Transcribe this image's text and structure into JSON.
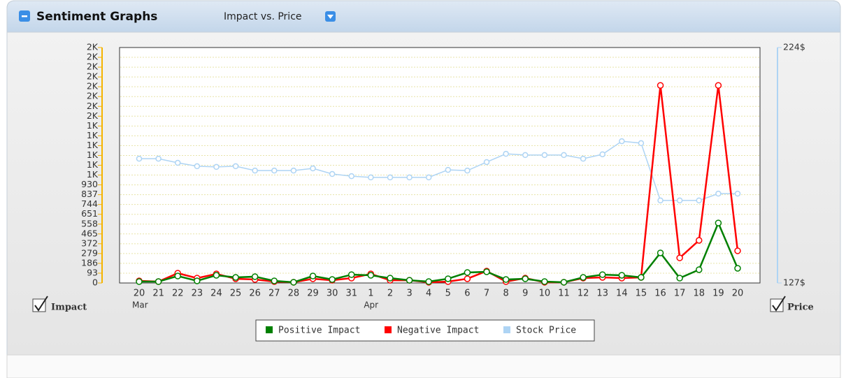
{
  "header": {
    "title": "Sentiment Graphs",
    "view": "Impact vs. Price"
  },
  "toggles": {
    "left": "Impact",
    "right": "Price"
  },
  "chart_data": {
    "type": "line",
    "categories": [
      "20",
      "21",
      "22",
      "23",
      "24",
      "25",
      "26",
      "27",
      "28",
      "29",
      "30",
      "31",
      "1",
      "2",
      "3",
      "4",
      "5",
      "6",
      "7",
      "8",
      "9",
      "10",
      "11",
      "12",
      "13",
      "14",
      "15",
      "16",
      "17",
      "18",
      "19",
      "20"
    ],
    "sub_categories": [
      "Mar",
      null,
      null,
      null,
      null,
      null,
      null,
      null,
      null,
      null,
      null,
      null,
      "Apr",
      null,
      null,
      null,
      null,
      null,
      null,
      null,
      null,
      null,
      null,
      null,
      null,
      null,
      null,
      null,
      null,
      null,
      null,
      null
    ],
    "series": [
      {
        "name": "Stock Price",
        "color": "#aed4f4",
        "axis": "y2",
        "values": [
          178.2,
          178.2,
          176.5,
          175.1,
          174.8,
          175.1,
          173.3,
          173.3,
          173.3,
          174.2,
          171.9,
          171,
          170.5,
          170.5,
          170.5,
          170.5,
          173.6,
          173.3,
          176.8,
          180.2,
          179.7,
          179.7,
          179.7,
          178.2,
          180,
          185.4,
          184.6,
          161,
          161,
          161,
          163.8,
          163.8
        ]
      },
      {
        "name": "Negative Impact",
        "color": "#ff0000",
        "values": [
          20,
          13,
          93,
          46,
          86,
          40,
          33,
          13,
          7,
          40,
          26,
          46,
          86,
          26,
          26,
          7,
          13,
          40,
          113,
          13,
          46,
          7,
          7,
          46,
          53,
          46,
          53,
          1873,
          238,
          404,
          1873,
          305
        ]
      },
      {
        "name": "Positive Impact",
        "color": "#008000",
        "values": [
          13,
          13,
          66,
          20,
          73,
          53,
          60,
          20,
          7,
          66,
          33,
          79,
          73,
          46,
          26,
          13,
          40,
          99,
          106,
          33,
          40,
          13,
          7,
          53,
          79,
          73,
          53,
          285,
          46,
          126,
          569,
          139
        ]
      }
    ],
    "legend_order": [
      "Positive Impact",
      "Negative Impact",
      "Stock Price"
    ],
    "ylim": [
      0,
      2232
    ],
    "yticks": [
      0,
      93,
      186,
      279,
      372,
      465,
      558,
      651,
      744,
      837,
      930,
      {
        "value": 1023,
        "label": "1K"
      },
      {
        "value": 1116,
        "label": "1K"
      },
      {
        "value": 1209,
        "label": "1K"
      },
      {
        "value": 1302,
        "label": "1K"
      },
      {
        "value": 1395,
        "label": "1K"
      },
      {
        "value": 1488,
        "label": "1K"
      },
      {
        "value": 1581,
        "label": "2K"
      },
      {
        "value": 1674,
        "label": "2K"
      },
      {
        "value": 1767,
        "label": "2K"
      },
      {
        "value": 1860,
        "label": "2K"
      },
      {
        "value": 1953,
        "label": "2K"
      },
      {
        "value": 2046,
        "label": "2K"
      },
      {
        "value": 2139,
        "label": "2K"
      },
      {
        "value": 2232,
        "label": "2K"
      }
    ],
    "y2lim": [
      127,
      224
    ],
    "y2ticks": [
      {
        "value": 127,
        "label": "127$"
      },
      {
        "value": 224,
        "label": "224$"
      }
    ],
    "grid": true
  }
}
